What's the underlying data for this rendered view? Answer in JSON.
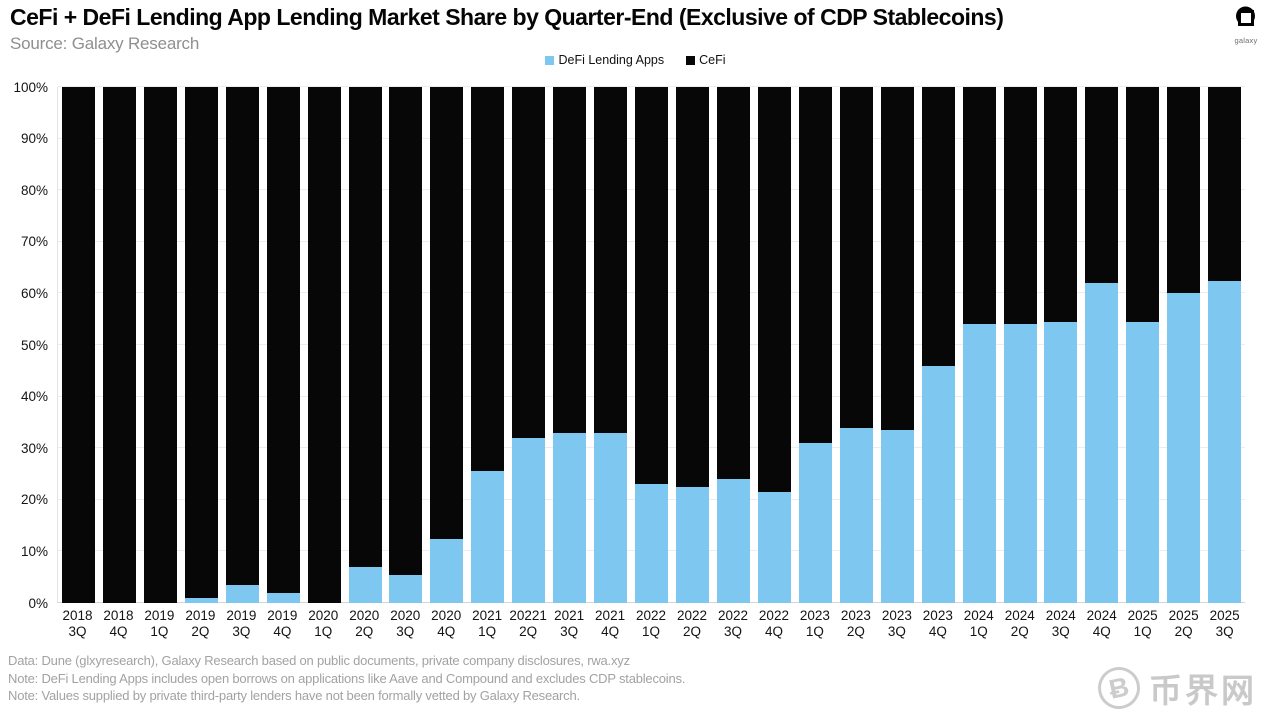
{
  "header": {
    "title": "CeFi + DeFi Lending App Lending Market Share by Quarter-End (Exclusive of CDP Stablecoins)",
    "source": "Source: Galaxy Research",
    "logo_caption": "galaxy"
  },
  "legend": [
    {
      "label": "DeFi Lending Apps",
      "color": "#7dc7f1"
    },
    {
      "label": "CeFi",
      "color": "#070707"
    }
  ],
  "chart_data": {
    "type": "bar",
    "stacked": true,
    "title": "CeFi + DeFi Lending App Lending Market Share by Quarter-End (Exclusive of CDP Stablecoins)",
    "xlabel": "",
    "ylabel": "",
    "ylim": [
      0,
      100
    ],
    "yticks": [
      0,
      10,
      20,
      30,
      40,
      50,
      60,
      70,
      80,
      90,
      100
    ],
    "ytick_suffix": "%",
    "grid": true,
    "legend_position": "top",
    "categories": [
      [
        "2018",
        "3Q"
      ],
      [
        "2018",
        "4Q"
      ],
      [
        "2019",
        "1Q"
      ],
      [
        "2019",
        "2Q"
      ],
      [
        "2019",
        "3Q"
      ],
      [
        "2019",
        "4Q"
      ],
      [
        "2020",
        "1Q"
      ],
      [
        "2020",
        "2Q"
      ],
      [
        "2020",
        "3Q"
      ],
      [
        "2020",
        "4Q"
      ],
      [
        "2021",
        "1Q"
      ],
      [
        "20221",
        "2Q"
      ],
      [
        "2021",
        "3Q"
      ],
      [
        "2021",
        "4Q"
      ],
      [
        "2022",
        "1Q"
      ],
      [
        "2022",
        "2Q"
      ],
      [
        "2022",
        "3Q"
      ],
      [
        "2022",
        "4Q"
      ],
      [
        "2023",
        "1Q"
      ],
      [
        "2023",
        "2Q"
      ],
      [
        "2023",
        "3Q"
      ],
      [
        "2023",
        "4Q"
      ],
      [
        "2024",
        "1Q"
      ],
      [
        "2024",
        "2Q"
      ],
      [
        "2024",
        "3Q"
      ],
      [
        "2024",
        "4Q"
      ],
      [
        "2025",
        "1Q"
      ],
      [
        "2025",
        "2Q"
      ],
      [
        "2025",
        "3Q"
      ]
    ],
    "series": [
      {
        "name": "DeFi Lending Apps",
        "color": "#7dc7f1",
        "values": [
          0,
          0,
          0,
          1,
          3.5,
          2,
          0,
          7,
          5.5,
          12.5,
          25.5,
          32,
          33,
          33,
          23,
          22.5,
          24,
          21.5,
          31,
          34,
          33.5,
          46,
          54,
          54,
          54.5,
          62,
          54.5,
          60,
          62.5
        ]
      },
      {
        "name": "CeFi",
        "color": "#070707",
        "values": [
          100,
          100,
          100,
          99,
          96.5,
          98,
          100,
          93,
          94.5,
          87.5,
          74.5,
          68,
          67,
          67,
          77,
          77.5,
          76,
          78.5,
          69,
          66,
          66.5,
          54,
          46,
          46,
          45.5,
          38,
          45.5,
          40,
          37.5
        ]
      }
    ]
  },
  "footer": {
    "notes": [
      "Data: Dune (glxyresearch), Galaxy Research based on public documents, private company disclosures, rwa.xyz",
      "Note: DeFi Lending Apps includes open borrows on applications like Aave and Compound and excludes CDP stablecoins.",
      "Note: Values supplied by private third-party lenders have not been formally vetted by Galaxy Research."
    ]
  },
  "watermark": {
    "icon_glyph": "Ƀ",
    "text": "币界网"
  }
}
